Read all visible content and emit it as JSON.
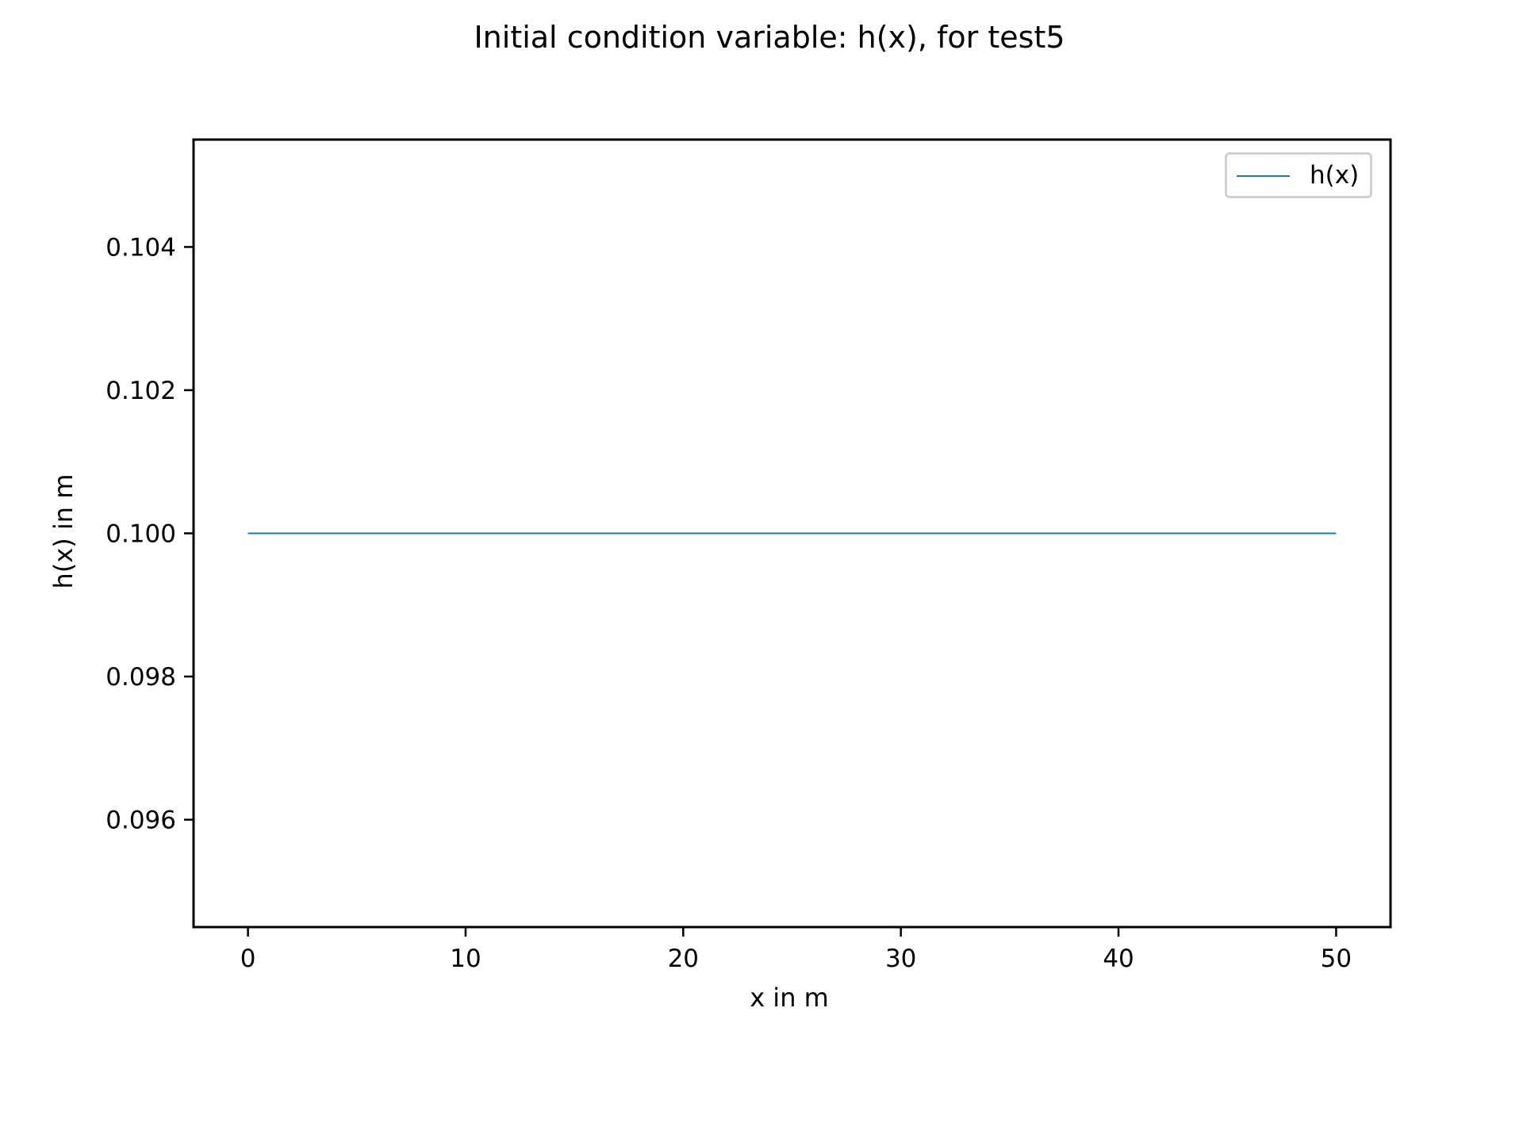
{
  "chart_data": {
    "type": "line",
    "title": "Initial condition variable: h(x), for test5",
    "xlabel": "x in m",
    "ylabel": "h(x) in m",
    "xlim": [
      -2.5,
      52.5
    ],
    "ylim": [
      0.0945,
      0.1055
    ],
    "xticks": [
      0,
      10,
      20,
      30,
      40,
      50
    ],
    "xtick_labels": [
      "0",
      "10",
      "20",
      "30",
      "40",
      "50"
    ],
    "yticks": [
      0.096,
      0.098,
      0.1,
      0.102,
      0.104
    ],
    "ytick_labels": [
      "0.096",
      "0.098",
      "0.100",
      "0.102",
      "0.104"
    ],
    "grid": false,
    "legend_position": "top-right",
    "series": [
      {
        "name": "h(x)",
        "color": "#1f77b4",
        "x": [
          0,
          50
        ],
        "y": [
          0.1,
          0.1
        ]
      }
    ]
  }
}
